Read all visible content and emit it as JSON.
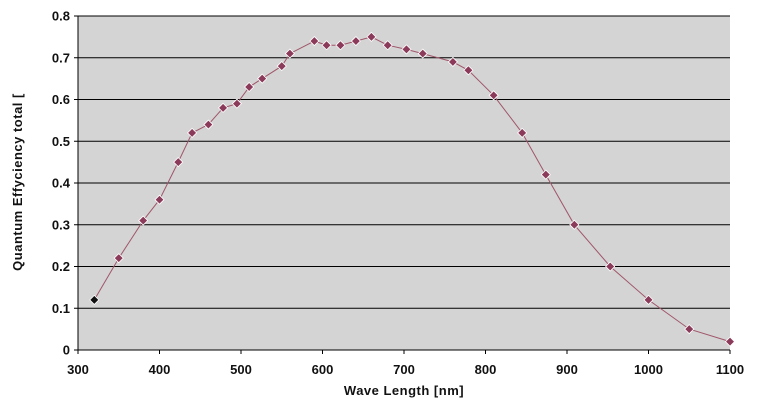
{
  "chart_data": {
    "type": "line",
    "title": "",
    "xlabel": "Wave Length [nm]",
    "ylabel": "Quantum Effyciency total [",
    "xlim": [
      300,
      1100
    ],
    "ylim": [
      0,
      0.8
    ],
    "x_ticks": [
      300,
      400,
      500,
      600,
      700,
      800,
      900,
      1000,
      1100
    ],
    "y_ticks": [
      "0",
      "0.1",
      "0.2",
      "0.3",
      "0.4",
      "0.5",
      "0.6",
      "0.7",
      "0.8"
    ],
    "grid": "horizontal",
    "legend": "none",
    "colors": {
      "plot_background": "#d4d4d4",
      "line": "#a0566a",
      "marker": "#8b3a5a",
      "marker_first": "#111111",
      "gridline": "#000000"
    },
    "series": [
      {
        "points": [
          [
            320,
            0.12
          ],
          [
            350,
            0.22
          ],
          [
            380,
            0.31
          ],
          [
            400,
            0.36
          ],
          [
            423,
            0.45
          ],
          [
            440,
            0.52
          ],
          [
            460,
            0.54
          ],
          [
            478,
            0.58
          ],
          [
            495,
            0.59
          ],
          [
            510,
            0.63
          ],
          [
            526,
            0.65
          ],
          [
            550,
            0.68
          ],
          [
            560,
            0.71
          ],
          [
            590,
            0.74
          ],
          [
            605,
            0.73
          ],
          [
            622,
            0.73
          ],
          [
            641,
            0.74
          ],
          [
            660,
            0.75
          ],
          [
            680,
            0.73
          ],
          [
            703,
            0.72
          ],
          [
            723,
            0.71
          ],
          [
            760,
            0.69
          ],
          [
            779,
            0.67
          ],
          [
            810,
            0.61
          ],
          [
            845,
            0.52
          ],
          [
            874,
            0.42
          ],
          [
            909,
            0.3
          ],
          [
            953,
            0.2
          ],
          [
            1000,
            0.12
          ],
          [
            1050,
            0.05
          ],
          [
            1100,
            0.02
          ]
        ]
      }
    ]
  }
}
